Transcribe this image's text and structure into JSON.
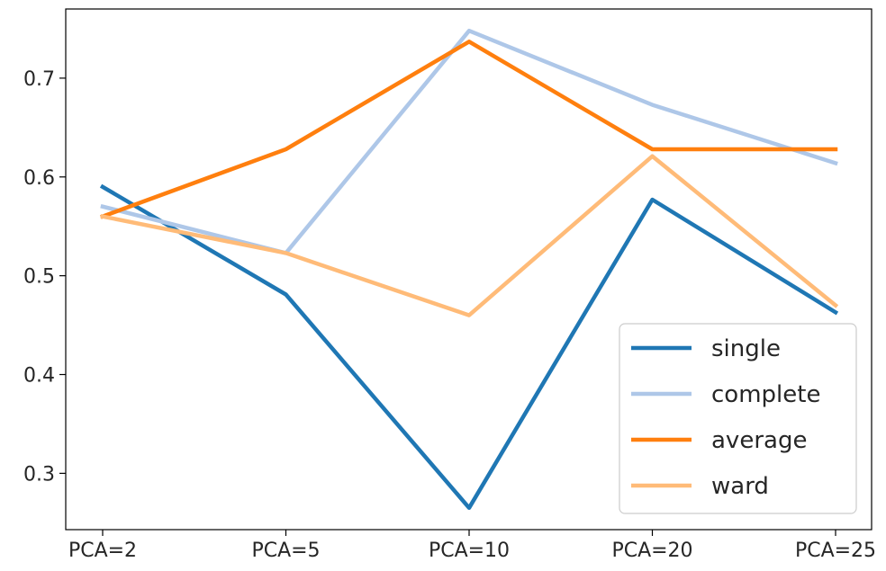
{
  "chart_data": {
    "type": "line",
    "title": "",
    "xlabel": "",
    "ylabel": "",
    "categories": [
      "PCA=2",
      "PCA=5",
      "PCA=10",
      "PCA=20",
      "PCA=25"
    ],
    "series": [
      {
        "name": "single",
        "color": "#1f77b4",
        "values": [
          0.59,
          0.481,
          0.265,
          0.577,
          0.463
        ]
      },
      {
        "name": "complete",
        "color": "#aec7e8",
        "values": [
          0.57,
          0.523,
          0.748,
          0.673,
          0.614
        ]
      },
      {
        "name": "average",
        "color": "#ff7f0e",
        "values": [
          0.56,
          0.628,
          0.737,
          0.628,
          0.628
        ]
      },
      {
        "name": "ward",
        "color": "#ffbb78",
        "values": [
          0.56,
          0.523,
          0.46,
          0.621,
          0.47
        ]
      }
    ],
    "yticks": [
      "0.3",
      "0.4",
      "0.5",
      "0.6",
      "0.7"
    ],
    "ylim": [
      0.243,
      0.77
    ],
    "grid": false,
    "legend_position": "lower-right"
  }
}
